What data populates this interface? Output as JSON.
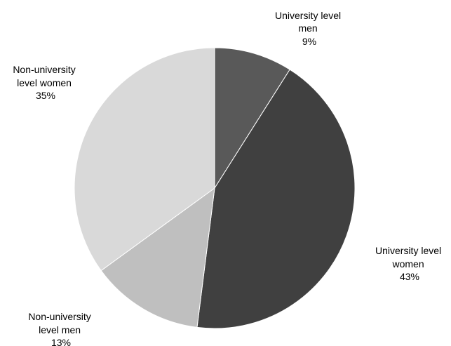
{
  "chart_data": {
    "type": "pie",
    "start_angle_deg": 0,
    "direction": "clockwise",
    "slices": [
      {
        "label_lines": [
          "University level",
          "men"
        ],
        "value": 9,
        "value_label": "9%",
        "color": "#595959"
      },
      {
        "label_lines": [
          "University level",
          "women"
        ],
        "value": 43,
        "value_label": "43%",
        "color": "#404040"
      },
      {
        "label_lines": [
          "Non-university",
          "level men"
        ],
        "value": 13,
        "value_label": "13%",
        "color": "#bfbfbf"
      },
      {
        "label_lines": [
          "Non-university",
          "level women"
        ],
        "value": 35,
        "value_label": "35%",
        "color": "#d9d9d9"
      }
    ]
  }
}
